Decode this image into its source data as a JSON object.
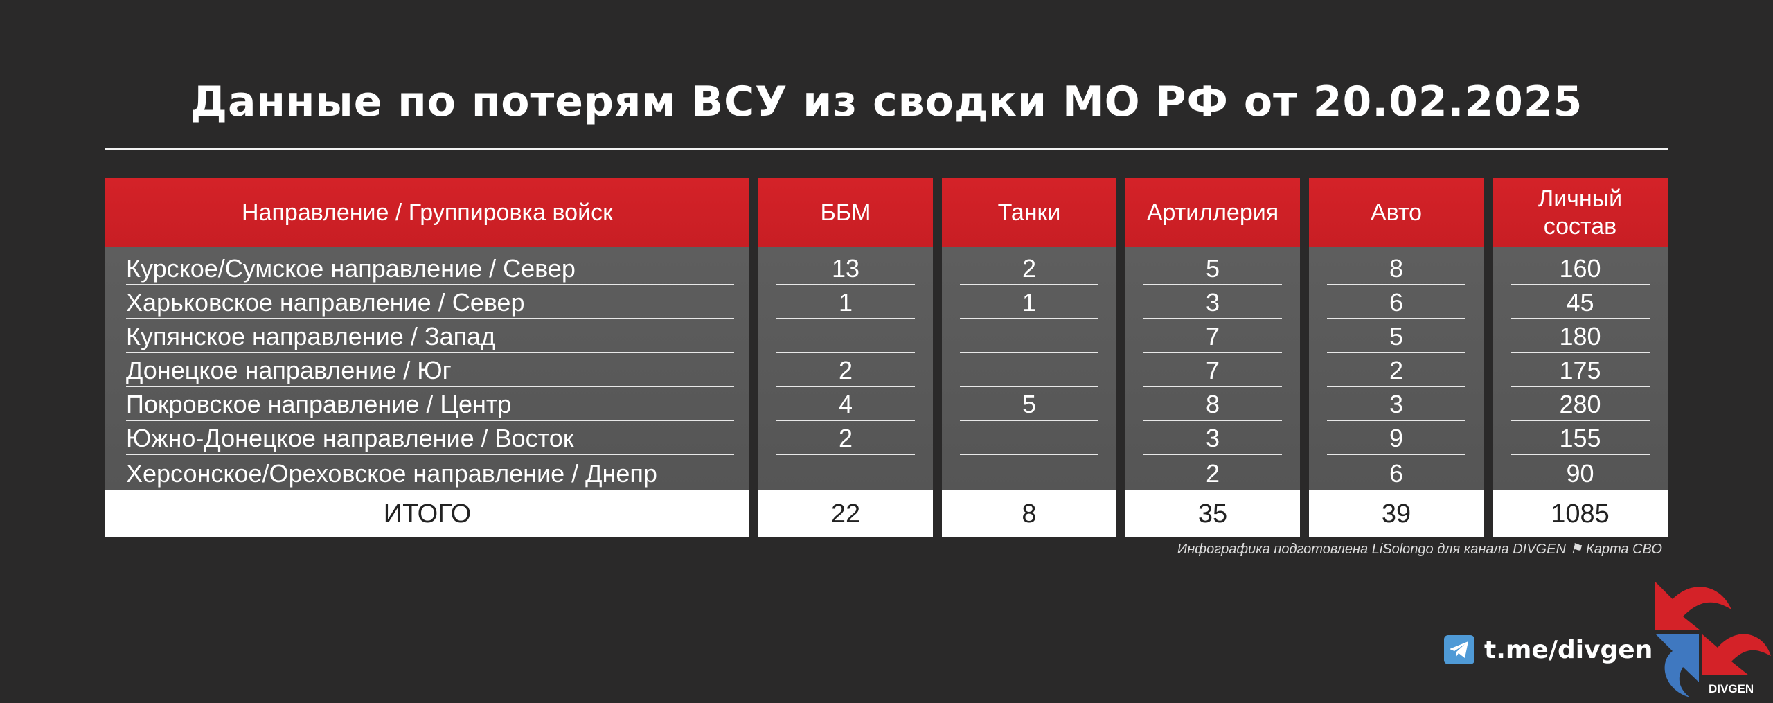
{
  "title": "Данные по потерям ВСУ из сводки МО РФ от 20.02.2025",
  "table": {
    "headers": [
      "Направление / Группировка войск",
      "ББМ",
      "Танки",
      "Артиллерия",
      "Авто",
      "Личный состав"
    ],
    "rows": [
      [
        "Курское/Сумское направление / Север",
        "13",
        "2",
        "5",
        "8",
        "160"
      ],
      [
        "Харьковское направление / Север",
        "1",
        "1",
        "3",
        "6",
        "45"
      ],
      [
        "Купянское направление / Запад",
        "",
        "",
        "7",
        "5",
        "180"
      ],
      [
        "Донецкое направление / Юг",
        "2",
        "",
        "7",
        "2",
        "175"
      ],
      [
        "Покровское направление / Центр",
        "4",
        "5",
        "8",
        "3",
        "280"
      ],
      [
        "Южно-Донецкое направление / Восток",
        "2",
        "",
        "3",
        "9",
        "155"
      ],
      [
        "Херсонское/Ореховское направление / Днепр",
        "",
        "",
        "2",
        "6",
        "90"
      ]
    ],
    "total": [
      "ИТОГО",
      "22",
      "8",
      "35",
      "39",
      "1085"
    ]
  },
  "credit": "Инфографика подготовлена LiSolongo для канала DIVGEN ⚑ Карта СВО",
  "telegram": {
    "link": "t.me/divgen",
    "icon": "telegram-icon"
  },
  "logo": {
    "text": "DIVGEN",
    "colors": {
      "red": "#d42228",
      "blue": "#3f78c0"
    }
  },
  "colors": {
    "header": "#d42228",
    "row": "#5a5a5a",
    "background": "#2a2929"
  }
}
